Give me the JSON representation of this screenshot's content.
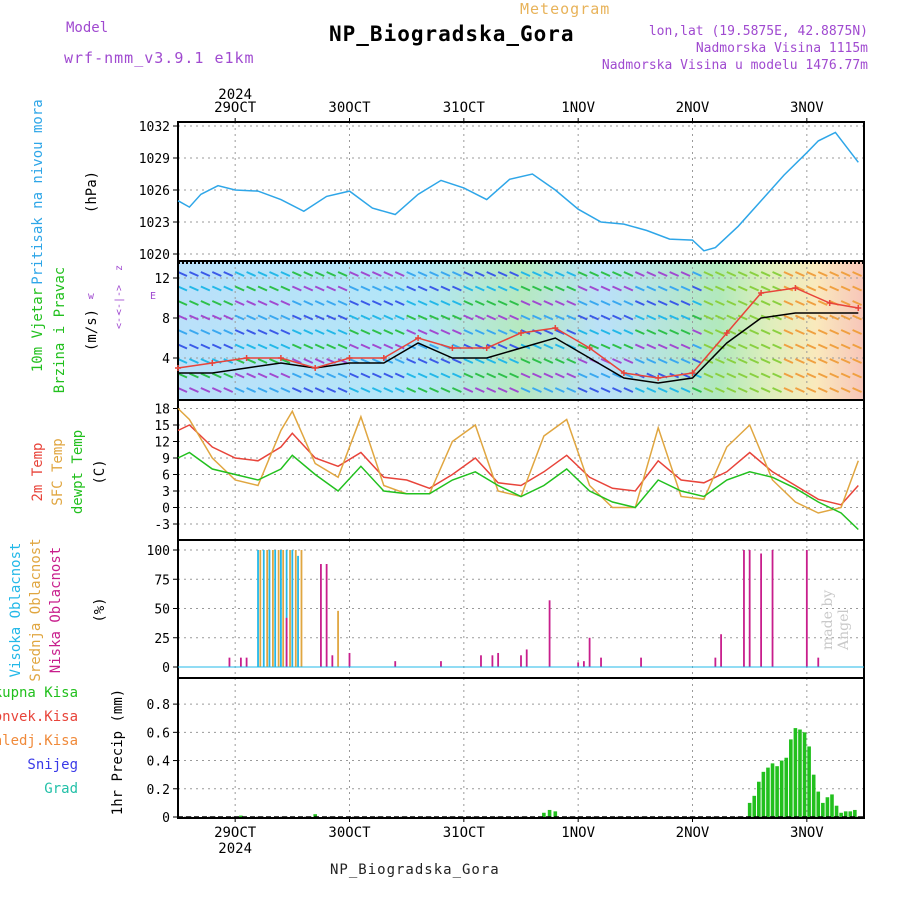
{
  "header": {
    "meteogram_label": "Meteogram",
    "model_label": "Model",
    "model_name": "wrf-nmm_v3.9.1 e1km",
    "site_title": "NP_Biogradska_Gora",
    "lonlat": "lon,lat (19.5875E, 42.8875N)",
    "altitude": "Nadmorska Visina 1115m",
    "altitude_model": "Nadmorska Visina u modelu 1476.77m",
    "footer": "NP_Biogradska_Gora",
    "signature": "made by Angel"
  },
  "colors": {
    "pressure": "#2ea6e8",
    "temp2m": "#e8443a",
    "sfc_temp": "#e0a640",
    "dewpoint": "#22c01e",
    "high_cloud": "#23b8e8",
    "mid_cloud": "#e0a640",
    "low_cloud": "#c81e8c",
    "precip_total": "#22c01e",
    "precip_conv": "#e8443a",
    "precip_frozen": "#f08a3a",
    "precip_snow": "#3a3ae8",
    "precip_hail": "#22c0a8"
  },
  "chart_data": {
    "x_axis": {
      "year": "2024",
      "ticks": [
        "29OCT",
        "30OCT",
        "31OCT",
        "1NOV",
        "2NOV",
        "3NOV"
      ],
      "start_day": "28OCT12Z",
      "days_shown": 6
    },
    "panels": [
      {
        "type": "line",
        "name": "pressure",
        "ylabel": "Pritisak na nivou mora",
        "unit": "(hPa)",
        "yticks": [
          1020,
          1023,
          1026,
          1029,
          1032
        ],
        "ylim": [
          1020,
          1032
        ],
        "series": [
          {
            "name": "Pritisak",
            "color_key": "pressure",
            "t": [
              0,
              0.1,
              0.2,
              0.35,
              0.5,
              0.7,
              0.9,
              1.1,
              1.3,
              1.5,
              1.7,
              1.9,
              2.1,
              2.3,
              2.5,
              2.7,
              2.9,
              3.1,
              3.3,
              3.5,
              3.7,
              3.9,
              4.1,
              4.3,
              4.5,
              4.6,
              4.7,
              4.9,
              5.1,
              5.3,
              5.5,
              5.6,
              5.75,
              5.95
            ],
            "values": [
              1025,
              1024.4,
              1025.6,
              1026.4,
              1026.0,
              1025.9,
              1025.1,
              1024.0,
              1025.4,
              1025.9,
              1024.3,
              1023.7,
              1025.6,
              1026.9,
              1026.2,
              1025.1,
              1027.0,
              1027.5,
              1026.0,
              1024.2,
              1023.0,
              1022.8,
              1022.2,
              1021.4,
              1021.3,
              1020.3,
              1020.6,
              1022.6,
              1025.0,
              1027.4,
              1029.5,
              1030.6,
              1031.4,
              1028.6
            ]
          }
        ]
      },
      {
        "type": "wind",
        "name": "wind",
        "ylabel": "10m Vjetar",
        "ylabel2": "Brzina i Pravac",
        "unit": "(m/s)",
        "direction_legend": {
          "w": "w",
          "e": "E",
          "n": "z",
          "s": "<--",
          "arrow": "<-|->"
        },
        "yticks": [
          4,
          8,
          12
        ],
        "ylim": [
          0,
          14
        ],
        "series": [
          {
            "name": "mean",
            "color": "#000000",
            "t": [
              0,
              0.3,
              0.6,
              0.9,
              1.2,
              1.5,
              1.8,
              2.1,
              2.4,
              2.7,
              3.0,
              3.3,
              3.6,
              3.9,
              4.2,
              4.5,
              4.8,
              5.1,
              5.4,
              5.7,
              5.95
            ],
            "values": [
              2.5,
              2.5,
              3.0,
              3.5,
              3.0,
              3.5,
              3.5,
              5.5,
              4.0,
              4.0,
              5.0,
              6.0,
              4.0,
              2.0,
              1.5,
              2.0,
              5.5,
              8.0,
              8.5,
              8.5,
              8.5
            ]
          },
          {
            "name": "gust",
            "color": "#e8443a",
            "t": [
              0,
              0.3,
              0.6,
              0.9,
              1.2,
              1.5,
              1.8,
              2.1,
              2.4,
              2.7,
              3.0,
              3.3,
              3.6,
              3.9,
              4.2,
              4.5,
              4.8,
              5.1,
              5.4,
              5.7,
              5.95
            ],
            "values": [
              3.0,
              3.5,
              4.0,
              4.0,
              3.0,
              4.0,
              4.0,
              6.0,
              5.0,
              5.0,
              6.5,
              7.0,
              5.0,
              2.5,
              2.0,
              2.5,
              6.5,
              10.5,
              11.0,
              9.5,
              9.0
            ]
          }
        ]
      },
      {
        "type": "line",
        "name": "temperature",
        "ylabels": [
          "2m Temp",
          "SFC Temp",
          "dewpt Temp"
        ],
        "unit": "(C)",
        "yticks": [
          -3,
          0,
          3,
          6,
          9,
          12,
          15,
          18
        ],
        "ylim": [
          -5,
          19
        ],
        "series": [
          {
            "name": "2m Temp",
            "color_key": "temp2m",
            "t": [
              0,
              0.1,
              0.3,
              0.5,
              0.7,
              0.9,
              1.0,
              1.2,
              1.4,
              1.6,
              1.8,
              2.0,
              2.2,
              2.4,
              2.6,
              2.8,
              3.0,
              3.2,
              3.4,
              3.6,
              3.8,
              4.0,
              4.2,
              4.4,
              4.6,
              4.8,
              5.0,
              5.2,
              5.4,
              5.6,
              5.8,
              5.95
            ],
            "values": [
              14,
              15,
              11,
              9,
              8.5,
              11,
              13.5,
              9,
              7.5,
              10,
              5.5,
              5,
              3.5,
              6,
              9,
              4.5,
              4,
              6.5,
              9.5,
              5.5,
              3.5,
              3,
              8.5,
              5,
              4.5,
              6.5,
              10,
              6.5,
              4,
              1.5,
              0.5,
              4
            ]
          },
          {
            "name": "SFC Temp",
            "color_key": "sfc_temp",
            "t": [
              0,
              0.1,
              0.3,
              0.5,
              0.7,
              0.9,
              1.0,
              1.2,
              1.4,
              1.6,
              1.8,
              2.0,
              2.2,
              2.4,
              2.6,
              2.8,
              3.0,
              3.2,
              3.4,
              3.6,
              3.8,
              4.0,
              4.2,
              4.4,
              4.6,
              4.8,
              5.0,
              5.2,
              5.4,
              5.6,
              5.8,
              5.95
            ],
            "values": [
              18,
              16,
              9,
              5,
              4,
              14,
              17.5,
              8,
              5.5,
              16.5,
              4,
              2.5,
              2.5,
              12,
              15,
              3,
              2,
              13,
              16,
              4,
              0,
              0,
              14.5,
              2,
              1.5,
              11,
              15,
              5,
              1,
              -1,
              0,
              8.5
            ]
          },
          {
            "name": "dewpt Temp",
            "color_key": "dewpoint",
            "t": [
              0,
              0.1,
              0.3,
              0.5,
              0.7,
              0.9,
              1.0,
              1.2,
              1.4,
              1.6,
              1.8,
              2.0,
              2.2,
              2.4,
              2.6,
              2.8,
              3.0,
              3.2,
              3.4,
              3.6,
              3.8,
              4.0,
              4.2,
              4.4,
              4.6,
              4.8,
              5.0,
              5.2,
              5.4,
              5.6,
              5.8,
              5.95
            ],
            "values": [
              9,
              10,
              7,
              6,
              5,
              7,
              9.5,
              6,
              3,
              7.5,
              3,
              2.5,
              2.5,
              5,
              6.5,
              4,
              2,
              4,
              7,
              3,
              1,
              0,
              5,
              3,
              2,
              5,
              6.5,
              5.5,
              3.5,
              1,
              -1,
              -4
            ]
          }
        ]
      },
      {
        "type": "bar",
        "name": "clouds",
        "ylabels": [
          "Visoka Oblacnost",
          "Srednja Oblacnost",
          "Niska Oblacnost"
        ],
        "unit": "(%)",
        "yticks": [
          0,
          25,
          50,
          75,
          100
        ],
        "ylim": [
          0,
          100
        ],
        "series": [
          {
            "name": "Visoka Oblacnost",
            "color_key": "high_cloud",
            "t": [
              0.7,
              0.75,
              0.8,
              0.85,
              0.9,
              0.95,
              1.0,
              1.05
            ],
            "values": [
              100,
              100,
              100,
              100,
              100,
              100,
              100,
              95
            ]
          },
          {
            "name": "Srednja Oblacnost",
            "color_key": "mid_cloud",
            "t": [
              0.72,
              0.78,
              0.83,
              0.88,
              0.92,
              0.98,
              1.03,
              1.08,
              1.4
            ],
            "values": [
              100,
              100,
              100,
              100,
              100,
              100,
              100,
              100,
              48
            ]
          },
          {
            "name": "Niska Oblacnost",
            "color_key": "low_cloud",
            "t": [
              0.45,
              0.55,
              0.6,
              0.95,
              1.25,
              1.3,
              1.35,
              1.5,
              1.9,
              2.3,
              2.65,
              2.75,
              2.8,
              3.0,
              3.05,
              3.25,
              3.5,
              3.55,
              3.6,
              3.7,
              4.05,
              4.7,
              4.75,
              4.95,
              5.0,
              5.1,
              5.2,
              5.5,
              5.6
            ],
            "values": [
              8,
              8,
              8,
              42,
              88,
              88,
              10,
              12,
              5,
              5,
              10,
              10,
              12,
              10,
              15,
              57,
              4,
              5,
              25,
              8,
              8,
              8,
              28,
              100,
              100,
              97,
              100,
              100,
              8
            ]
          }
        ]
      },
      {
        "type": "bar",
        "name": "precip",
        "ylabels": [
          "Ukupna Kisa",
          "Konvek.Kisa",
          "Zaledj.Kisa",
          "Snijeg",
          "Grad"
        ],
        "unit": "1hr Precip (mm)",
        "yticks": [
          0,
          0.2,
          0.4,
          0.6,
          0.8
        ],
        "ylim": [
          0,
          0.9
        ],
        "series": [
          {
            "name": "Ukupna Kisa",
            "color_key": "precip_total",
            "t": [
              0.55,
              1.2,
              3.2,
              3.25,
              3.3,
              5.0,
              5.04,
              5.08,
              5.12,
              5.16,
              5.2,
              5.24,
              5.28,
              5.32,
              5.36,
              5.4,
              5.44,
              5.48,
              5.52,
              5.56,
              5.6,
              5.64,
              5.68,
              5.72,
              5.76,
              5.8,
              5.84,
              5.88,
              5.92
            ],
            "values": [
              0.01,
              0.02,
              0.03,
              0.05,
              0.04,
              0.1,
              0.15,
              0.25,
              0.32,
              0.35,
              0.38,
              0.36,
              0.4,
              0.42,
              0.55,
              0.63,
              0.62,
              0.6,
              0.5,
              0.3,
              0.18,
              0.1,
              0.14,
              0.16,
              0.08,
              0.03,
              0.04,
              0.04,
              0.05
            ]
          }
        ]
      }
    ]
  }
}
